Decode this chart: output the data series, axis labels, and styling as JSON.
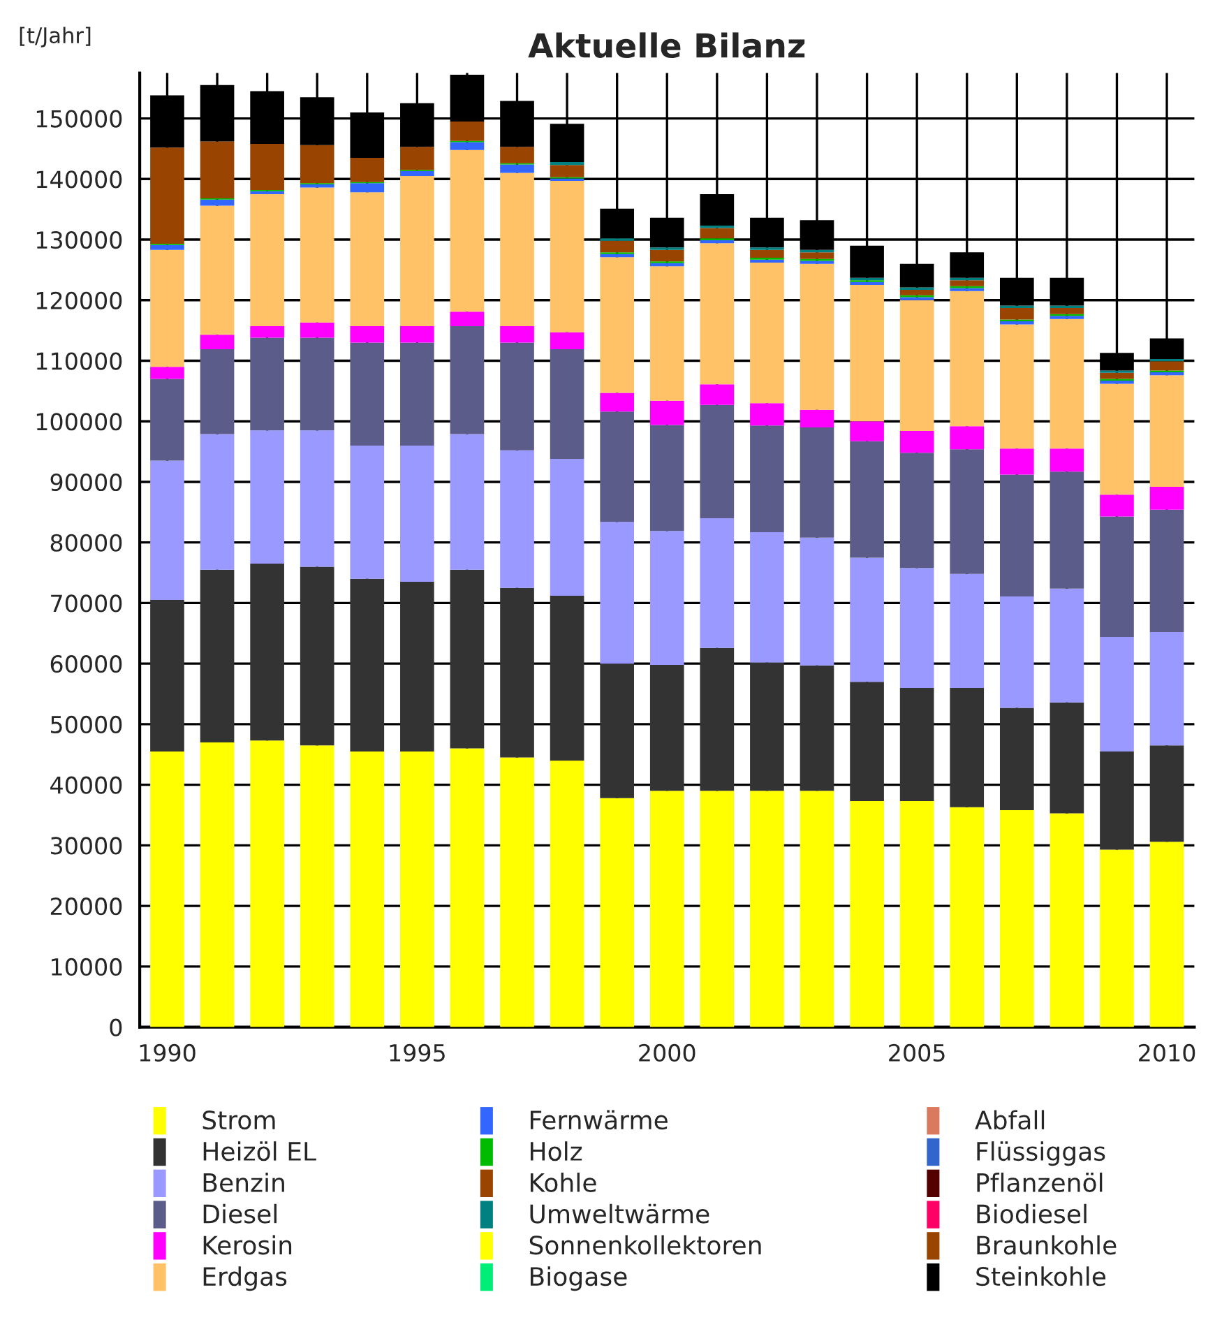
{
  "chart_data": {
    "type": "bar",
    "title": "Aktuelle Bilanz",
    "ylabel": "[t/Jahr]",
    "stacked": true,
    "grid": true,
    "legend": "bottom",
    "categories": [
      "1990",
      null,
      null,
      null,
      null,
      "1995",
      null,
      null,
      null,
      null,
      "2000",
      null,
      null,
      null,
      null,
      "2005",
      null,
      null,
      null,
      null,
      "2010"
    ],
    "ylim": [
      0,
      157500
    ],
    "yticks": [
      0,
      10000,
      20000,
      30000,
      40000,
      50000,
      60000,
      70000,
      80000,
      90000,
      100000,
      110000,
      120000,
      130000,
      140000,
      150000
    ],
    "series": [
      {
        "name": "Strom",
        "color": "#ffff00",
        "values": [
          45500,
          47000,
          47300,
          46500,
          45500,
          45500,
          46000,
          44500,
          44000,
          37800,
          39000,
          39000,
          39000,
          39000,
          37300,
          37300,
          36300,
          35800,
          35300,
          29300,
          30600
        ]
      },
      {
        "name": "Heizöl EL",
        "color": "#333333",
        "values": [
          25000,
          28500,
          29200,
          29500,
          28500,
          28000,
          29500,
          28000,
          27200,
          22200,
          20800,
          23600,
          21200,
          20700,
          19700,
          18700,
          19700,
          16900,
          18300,
          16200,
          15900
        ]
      },
      {
        "name": "Benzin",
        "color": "#9999ff",
        "values": [
          23000,
          22400,
          22000,
          22500,
          22000,
          22500,
          22400,
          22700,
          22600,
          23400,
          22100,
          21400,
          21500,
          21100,
          20500,
          19800,
          18800,
          18400,
          18800,
          18900,
          18700
        ]
      },
      {
        "name": "Diesel",
        "color": "#5c5c8a",
        "values": [
          13500,
          14000,
          15300,
          15300,
          17000,
          17000,
          17800,
          17800,
          18100,
          18200,
          17500,
          18700,
          17600,
          18200,
          19200,
          19000,
          20600,
          20100,
          19300,
          19900,
          20200
        ]
      },
      {
        "name": "Kerosin",
        "color": "#ff00ff",
        "values": [
          2000,
          2400,
          1900,
          2500,
          2700,
          2700,
          2400,
          2700,
          2800,
          3100,
          4000,
          3400,
          3700,
          2900,
          3300,
          3600,
          3800,
          4300,
          3800,
          3600,
          3800
        ]
      },
      {
        "name": "Erdgas",
        "color": "#ffc266",
        "values": [
          19300,
          21300,
          21800,
          22300,
          22100,
          24800,
          26700,
          25300,
          25000,
          22400,
          22200,
          23300,
          23200,
          24100,
          22500,
          21600,
          22300,
          20500,
          21400,
          18300,
          18400
        ]
      },
      {
        "name": "Fernwärme",
        "color": "#3366ff",
        "values": [
          800,
          1000,
          500,
          500,
          1500,
          800,
          1300,
          1400,
          400,
          500,
          500,
          500,
          500,
          500,
          500,
          500,
          500,
          500,
          500,
          500,
          500
        ]
      },
      {
        "name": "Holz",
        "color": "#00bb00",
        "values": [
          200,
          200,
          200,
          200,
          200,
          200,
          200,
          200,
          200,
          300,
          300,
          300,
          300,
          300,
          300,
          300,
          300,
          300,
          300,
          300,
          300
        ]
      },
      {
        "name": "Kohle",
        "color": "#994400",
        "values": [
          15900,
          9400,
          7600,
          6300,
          4000,
          3800,
          3200,
          2700,
          2000,
          1900,
          1900,
          1700,
          1300,
          1100,
          0,
          900,
          1000,
          1900,
          1000,
          1000,
          1500
        ]
      },
      {
        "name": "Umweltwärme",
        "color": "#008080",
        "values": [
          0,
          0,
          0,
          0,
          0,
          0,
          0,
          0,
          500,
          400,
          400,
          400,
          400,
          400,
          400,
          400,
          400,
          400,
          400,
          400,
          400
        ]
      },
      {
        "name": "Sonnenkollektoren",
        "color": "#ffff00",
        "values": [
          0,
          0,
          0,
          0,
          0,
          0,
          0,
          0,
          0,
          0,
          0,
          0,
          0,
          0,
          0,
          0,
          0,
          0,
          0,
          0,
          0
        ]
      },
      {
        "name": "Biogase",
        "color": "#00ee77",
        "values": [
          0,
          0,
          0,
          0,
          0,
          0,
          0,
          0,
          0,
          0,
          0,
          0,
          0,
          0,
          0,
          0,
          0,
          0,
          0,
          0,
          0
        ]
      },
      {
        "name": "Abfall",
        "color": "#d97a5e",
        "values": [
          0,
          0,
          0,
          0,
          0,
          0,
          0,
          0,
          0,
          0,
          0,
          0,
          0,
          0,
          0,
          0,
          0,
          0,
          0,
          0,
          0
        ]
      },
      {
        "name": "Flüssiggas",
        "color": "#3366cc",
        "values": [
          0,
          0,
          0,
          0,
          0,
          0,
          0,
          0,
          0,
          0,
          0,
          0,
          0,
          0,
          0,
          0,
          0,
          0,
          0,
          0,
          0
        ]
      },
      {
        "name": "Pflanzenöl",
        "color": "#550000",
        "values": [
          0,
          0,
          0,
          0,
          0,
          0,
          0,
          0,
          0,
          0,
          0,
          0,
          0,
          0,
          0,
          0,
          0,
          0,
          0,
          0,
          0
        ]
      },
      {
        "name": "Biodiesel",
        "color": "#ff0066",
        "values": [
          0,
          0,
          0,
          0,
          0,
          0,
          0,
          0,
          0,
          0,
          0,
          0,
          0,
          0,
          0,
          0,
          0,
          0,
          0,
          0,
          0
        ]
      },
      {
        "name": "Braunkohle",
        "color": "#994400",
        "values": [
          0,
          0,
          0,
          0,
          0,
          0,
          0,
          0,
          0,
          0,
          0,
          0,
          0,
          0,
          0,
          0,
          0,
          0,
          0,
          0,
          0
        ]
      },
      {
        "name": "Steinkohle",
        "color": "#000000",
        "values": [
          8600,
          9300,
          8700,
          7900,
          7500,
          7200,
          7700,
          7600,
          6300,
          4900,
          4900,
          5200,
          4900,
          4900,
          5300,
          3900,
          4200,
          4600,
          4600,
          2900,
          3400
        ]
      }
    ]
  }
}
